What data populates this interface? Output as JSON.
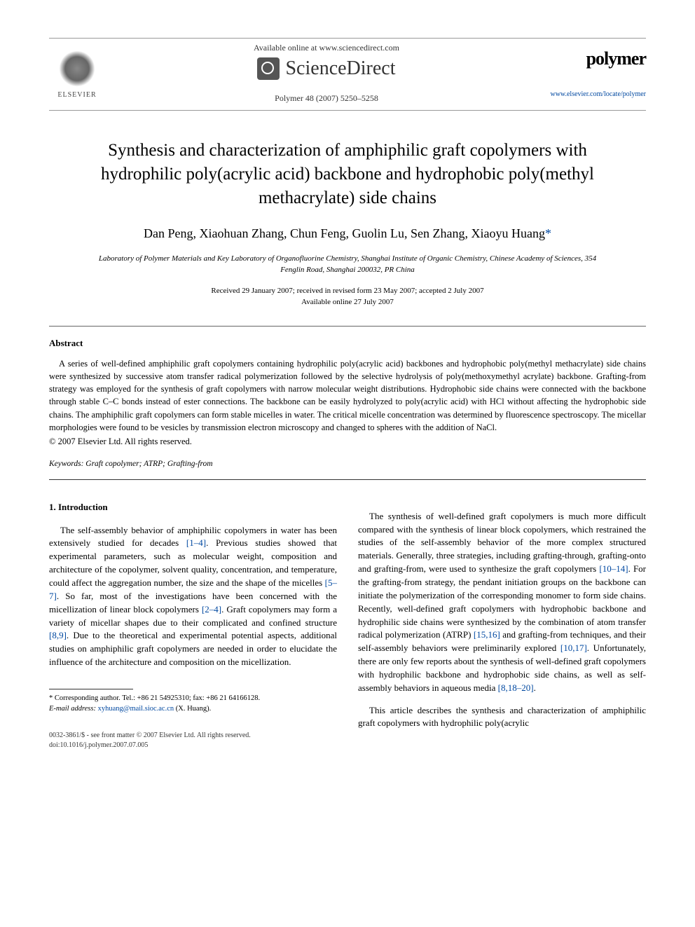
{
  "header": {
    "publisher_name": "ELSEVIER",
    "available_text": "Available online at www.sciencedirect.com",
    "sd_name": "ScienceDirect",
    "journal_ref": "Polymer 48 (2007) 5250–5258",
    "journal_name": "polymer",
    "journal_url": "www.elsevier.com/locate/polymer"
  },
  "title": "Synthesis and characterization of amphiphilic graft copolymers with hydrophilic poly(acrylic acid) backbone and hydrophobic poly(methyl methacrylate) side chains",
  "authors": "Dan Peng, Xiaohuan Zhang, Chun Feng, Guolin Lu, Sen Zhang, Xiaoyu Huang",
  "corr_mark": "*",
  "affiliation": "Laboratory of Polymer Materials and Key Laboratory of Organofluorine Chemistry, Shanghai Institute of Organic Chemistry, Chinese Academy of Sciences, 354 Fenglin Road, Shanghai 200032, PR China",
  "dates_received": "Received 29 January 2007; received in revised form 23 May 2007; accepted 2 July 2007",
  "dates_online": "Available online 27 July 2007",
  "abstract": {
    "heading": "Abstract",
    "text": "A series of well-defined amphiphilic graft copolymers containing hydrophilic poly(acrylic acid) backbones and hydrophobic poly(methyl methacrylate) side chains were synthesized by successive atom transfer radical polymerization followed by the selective hydrolysis of poly(methoxymethyl acrylate) backbone. Grafting-from strategy was employed for the synthesis of graft copolymers with narrow molecular weight distributions. Hydrophobic side chains were connected with the backbone through stable C–C bonds instead of ester connections. The backbone can be easily hydrolyzed to poly(acrylic acid) with HCl without affecting the hydrophobic side chains. The amphiphilic graft copolymers can form stable micelles in water. The critical micelle concentration was determined by fluorescence spectroscopy. The micellar morphologies were found to be vesicles by transmission electron microscopy and changed to spheres with the addition of NaCl.",
    "copyright": "© 2007 Elsevier Ltd. All rights reserved."
  },
  "keywords": {
    "label": "Keywords:",
    "list": "Graft copolymer; ATRP; Grafting-from"
  },
  "section1": {
    "heading": "1. Introduction",
    "p1a": "The self-assembly behavior of amphiphilic copolymers in water has been extensively studied for decades ",
    "r1": "[1–4]",
    "p1b": ". Previous studies showed that experimental parameters, such as molecular weight, composition and architecture of the copolymer, solvent quality, concentration, and temperature, could affect the aggregation number, the size and the shape of the micelles ",
    "r2": "[5–7]",
    "p1c": ". So far, most of the investigations have been concerned with the micellization of linear block copolymers ",
    "r3": "[2–4]",
    "p1d": ". Graft copolymers may form a variety of micellar shapes due to their complicated and confined structure ",
    "r4": "[8,9]",
    "p1e": ". Due to the theoretical and experimental potential aspects, additional studies on amphiphilic graft copolymers are needed in order to elucidate the influence of the architecture and composition on the micellization.",
    "p2a": "The synthesis of well-defined graft copolymers is much more difficult compared with the synthesis of linear block copolymers, which restrained the studies of the self-assembly behavior of the more complex structured materials. Generally, three strategies, including grafting-through, grafting-onto and grafting-from, were used to synthesize the graft copolymers ",
    "r5": "[10–14]",
    "p2b": ". For the grafting-from strategy, the pendant initiation groups on the backbone can initiate the polymerization of the corresponding monomer to form side chains. Recently, well-defined graft copolymers with hydrophobic backbone and hydrophilic side chains were synthesized by the combination of atom transfer radical polymerization (ATRP) ",
    "r6": "[15,16]",
    "p2c": " and grafting-from techniques, and their self-assembly behaviors were preliminarily explored ",
    "r7": "[10,17]",
    "p2d": ". Unfortunately, there are only few reports about the synthesis of well-defined graft copolymers with hydrophilic backbone and hydrophobic side chains, as well as self-assembly behaviors in aqueous media ",
    "r8": "[8,18–20]",
    "p2e": ".",
    "p3": "This article describes the synthesis and characterization of amphiphilic graft copolymers with hydrophilic poly(acrylic"
  },
  "footnote": {
    "corr": "* Corresponding author. Tel.: +86 21 54925310; fax: +86 21 64166128.",
    "email_label": "E-mail address:",
    "email": "xyhuang@mail.sioc.ac.cn",
    "email_tail": " (X. Huang)."
  },
  "bottom": {
    "issn": "0032-3861/$ - see front matter © 2007 Elsevier Ltd. All rights reserved.",
    "doi": "doi:10.1016/j.polymer.2007.07.005"
  },
  "colors": {
    "link": "#0048a0",
    "text": "#000000",
    "grey": "#666666"
  }
}
